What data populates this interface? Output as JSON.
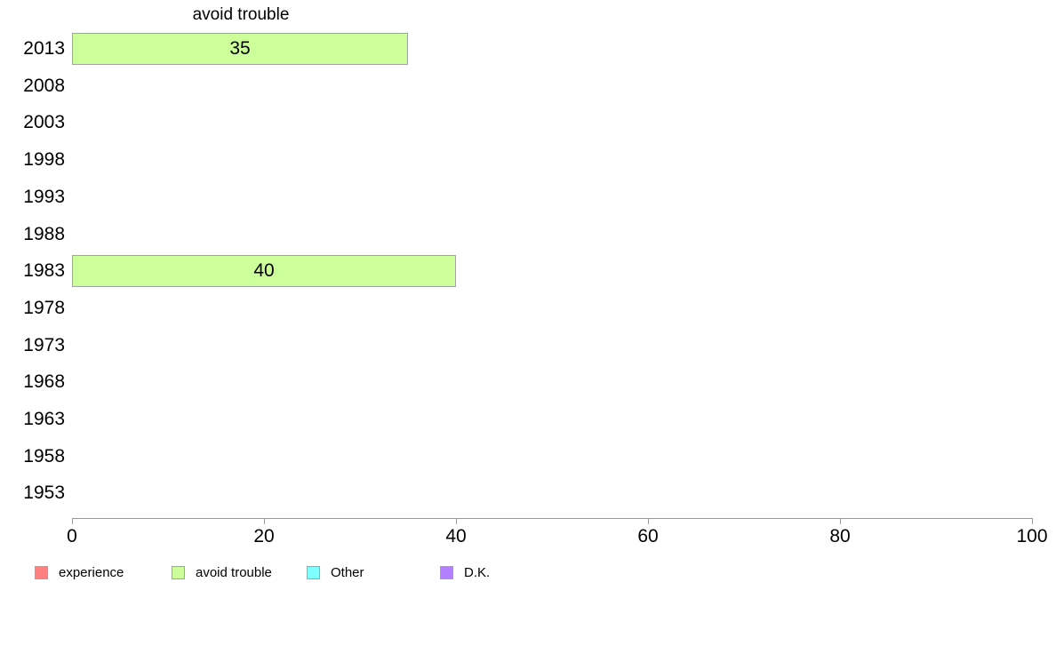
{
  "chart_data": {
    "type": "bar",
    "orientation": "horizontal",
    "title": "avoid trouble",
    "xlabel": "",
    "ylabel": "",
    "categories": [
      "2013",
      "2008",
      "2003",
      "1998",
      "1993",
      "1988",
      "1983",
      "1978",
      "1973",
      "1968",
      "1963",
      "1958",
      "1953"
    ],
    "values": [
      35,
      null,
      null,
      null,
      null,
      null,
      40,
      null,
      null,
      null,
      null,
      null,
      null
    ],
    "bar_value_labels": [
      "35",
      "",
      "",
      "",
      "",
      "",
      "40",
      "",
      "",
      "",
      "",
      "",
      ""
    ],
    "xlim": [
      0,
      100
    ],
    "x_ticks": [
      0,
      20,
      40,
      60,
      80,
      100
    ],
    "grid": false,
    "legend_position": "bottom-left",
    "colors": {
      "bar_fill": "#ccff99",
      "bar_border": "#a3a3a3",
      "axis": "#999999",
      "text": "#000000"
    },
    "legend": [
      {
        "label": "experience",
        "color": "#ff8080"
      },
      {
        "label": "avoid trouble",
        "color": "#ccff99"
      },
      {
        "label": "Other",
        "color": "#80ffff"
      },
      {
        "label": "D.K.",
        "color": "#b27fff"
      }
    ]
  }
}
